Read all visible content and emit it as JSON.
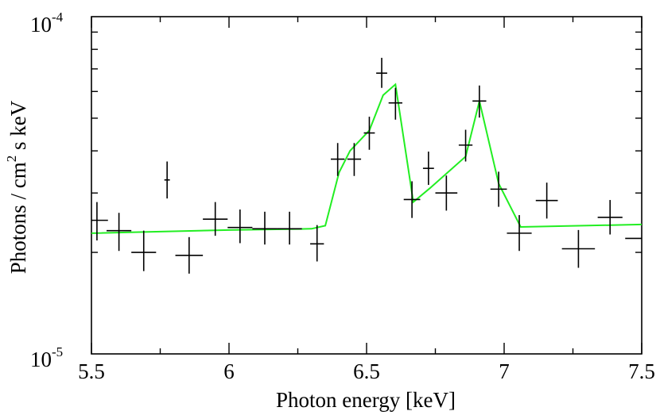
{
  "chart_data": {
    "type": "scatter",
    "title": "",
    "xlabel": "Photon energy [keV]",
    "ylabel": {
      "text_before": "Photons / cm",
      "superscript": "2",
      "text_after": " s keV"
    },
    "xlim": [
      5.5,
      7.5
    ],
    "ylim": [
      1e-05,
      0.0001
    ],
    "yscale": "log",
    "x_ticks": [
      5.5,
      6,
      6.5,
      7,
      7.5
    ],
    "x_tick_labels": [
      "5.5",
      "6",
      "6.5",
      "7",
      "7.5"
    ],
    "y_tick_labels": [
      {
        "value": 0.0001,
        "base": "10",
        "exponent": "-4"
      },
      {
        "value": 1e-05,
        "base": "10",
        "exponent": "-5"
      }
    ],
    "series": [
      {
        "name": "data",
        "kind": "errorbar",
        "color": "#000000",
        "points": [
          {
            "x": 5.52,
            "xerr": 0.04,
            "y": 2.49e-05,
            "ylo": 2.17e-05,
            "yhi": 2.82e-05
          },
          {
            "x": 5.6,
            "xerr": 0.045,
            "y": 2.32e-05,
            "ylo": 2.02e-05,
            "yhi": 2.62e-05
          },
          {
            "x": 5.69,
            "xerr": 0.045,
            "y": 2e-05,
            "ylo": 1.76e-05,
            "yhi": 2.32e-05
          },
          {
            "x": 5.775,
            "xerr": 0.01,
            "y": 3.28e-05,
            "ylo": 2.89e-05,
            "yhi": 3.72e-05
          },
          {
            "x": 5.855,
            "xerr": 0.05,
            "y": 1.96e-05,
            "ylo": 1.73e-05,
            "yhi": 2.22e-05
          },
          {
            "x": 5.95,
            "xerr": 0.045,
            "y": 2.51e-05,
            "ylo": 2.24e-05,
            "yhi": 2.82e-05
          },
          {
            "x": 6.04,
            "xerr": 0.045,
            "y": 2.37e-05,
            "ylo": 2.13e-05,
            "yhi": 2.68e-05
          },
          {
            "x": 6.13,
            "xerr": 0.045,
            "y": 2.35e-05,
            "ylo": 2.11e-05,
            "yhi": 2.64e-05
          },
          {
            "x": 6.22,
            "xerr": 0.045,
            "y": 2.35e-05,
            "ylo": 2.11e-05,
            "yhi": 2.64e-05
          },
          {
            "x": 6.32,
            "xerr": 0.025,
            "y": 2.12e-05,
            "ylo": 1.88e-05,
            "yhi": 2.41e-05
          },
          {
            "x": 6.395,
            "xerr": 0.025,
            "y": 3.78e-05,
            "ylo": 3.37e-05,
            "yhi": 4.22e-05
          },
          {
            "x": 6.455,
            "xerr": 0.025,
            "y": 3.78e-05,
            "ylo": 3.37e-05,
            "yhi": 4.22e-05
          },
          {
            "x": 6.51,
            "xerr": 0.02,
            "y": 4.52e-05,
            "ylo": 4.03e-05,
            "yhi": 5.05e-05
          },
          {
            "x": 6.555,
            "xerr": 0.02,
            "y": 6.8e-05,
            "ylo": 6.15e-05,
            "yhi": 7.55e-05
          },
          {
            "x": 6.605,
            "xerr": 0.025,
            "y": 5.55e-05,
            "ylo": 4.95e-05,
            "yhi": 6.15e-05
          },
          {
            "x": 6.665,
            "xerr": 0.03,
            "y": 2.87e-05,
            "ylo": 2.53e-05,
            "yhi": 3.25e-05
          },
          {
            "x": 6.725,
            "xerr": 0.02,
            "y": 3.55e-05,
            "ylo": 3.17e-05,
            "yhi": 3.98e-05
          },
          {
            "x": 6.79,
            "xerr": 0.04,
            "y": 3e-05,
            "ylo": 2.66e-05,
            "yhi": 3.38e-05
          },
          {
            "x": 6.86,
            "xerr": 0.025,
            "y": 4.16e-05,
            "ylo": 3.72e-05,
            "yhi": 4.62e-05
          },
          {
            "x": 6.91,
            "xerr": 0.025,
            "y": 5.62e-05,
            "ylo": 5.02e-05,
            "yhi": 6.25e-05
          },
          {
            "x": 6.98,
            "xerr": 0.03,
            "y": 3.08e-05,
            "ylo": 2.73e-05,
            "yhi": 3.47e-05
          },
          {
            "x": 7.055,
            "xerr": 0.045,
            "y": 2.28e-05,
            "ylo": 2.02e-05,
            "yhi": 2.58e-05
          },
          {
            "x": 7.155,
            "xerr": 0.04,
            "y": 2.85e-05,
            "ylo": 2.52e-05,
            "yhi": 3.22e-05
          },
          {
            "x": 7.27,
            "xerr": 0.06,
            "y": 2.05e-05,
            "ylo": 1.8e-05,
            "yhi": 2.33e-05
          },
          {
            "x": 7.385,
            "xerr": 0.045,
            "y": 2.54e-05,
            "ylo": 2.26e-05,
            "yhi": 2.86e-05
          },
          {
            "x": 7.47,
            "xerr": 0.03,
            "y": 2.2e-05,
            "ylo": 2.2e-05,
            "yhi": 2.2e-05
          }
        ]
      },
      {
        "name": "model",
        "kind": "line",
        "color": "#22ee22",
        "x": [
          5.5,
          6.0,
          6.3,
          6.35,
          6.4,
          6.44,
          6.51,
          6.56,
          6.605,
          6.67,
          6.73,
          6.86,
          6.91,
          6.98,
          7.06,
          7.5
        ],
        "y": [
          2.28e-05,
          2.33e-05,
          2.35e-05,
          2.4e-05,
          3.45e-05,
          4e-05,
          4.6e-05,
          5.85e-05,
          6.3e-05,
          2.82e-05,
          3.1e-05,
          3.85e-05,
          5.62e-05,
          3.2e-05,
          2.38e-05,
          2.42e-05
        ]
      }
    ]
  }
}
